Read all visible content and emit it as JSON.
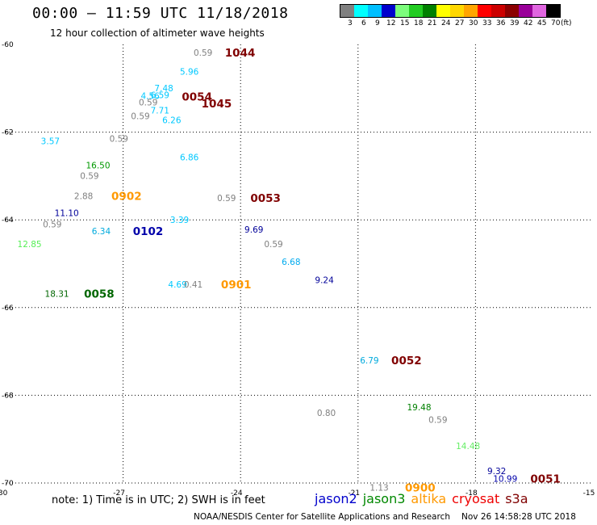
{
  "header": {
    "title": "00:00 – 11:59 UTC 11/18/2018",
    "subtitle": "12 hour collection of altimeter wave heights"
  },
  "colorbar": {
    "unit": "(ft)",
    "bins": [
      {
        "label": "3",
        "color": "#808080"
      },
      {
        "label": "6",
        "color": "#00ffff"
      },
      {
        "label": "9",
        "color": "#00bfff"
      },
      {
        "label": "12",
        "color": "#0000cd"
      },
      {
        "label": "15",
        "color": "#7cfc7c"
      },
      {
        "label": "18",
        "color": "#22cc22"
      },
      {
        "label": "21",
        "color": "#008000"
      },
      {
        "label": "24",
        "color": "#ffff00"
      },
      {
        "label": "27",
        "color": "#ffd700"
      },
      {
        "label": "30",
        "color": "#ffa500"
      },
      {
        "label": "33",
        "color": "#ff0000"
      },
      {
        "label": "36",
        "color": "#cc0000"
      },
      {
        "label": "39",
        "color": "#8b0000"
      },
      {
        "label": "42",
        "color": "#990099"
      },
      {
        "label": "45",
        "color": "#e066e0"
      },
      {
        "label": "70",
        "color": "#000000"
      }
    ]
  },
  "map": {
    "lon_range": [
      -30,
      -15
    ],
    "lat_range": [
      -70,
      -60
    ],
    "lat_ticks": [
      "-60",
      "-62",
      "-64",
      "-66",
      "-68",
      "-70"
    ],
    "lon_ticks": [
      "-30",
      "-27",
      "-24",
      "-21",
      "-18",
      "-15"
    ],
    "observations": [
      {
        "text": "0.59",
        "lon": -25.2,
        "lat": -60.18,
        "color": "#808080",
        "size": "s"
      },
      {
        "text": "1044",
        "lon": -24.4,
        "lat": -60.18,
        "color": "#800000",
        "size": "b"
      },
      {
        "text": "5.96",
        "lon": -25.55,
        "lat": -60.62,
        "color": "#00c8ff",
        "size": "s"
      },
      {
        "text": "7.48",
        "lon": -26.2,
        "lat": -60.99,
        "color": "#00c8ff",
        "size": "s"
      },
      {
        "text": "4.56",
        "lon": -26.55,
        "lat": -61.17,
        "color": "#00c8ff",
        "size": "s"
      },
      {
        "text": "6.59",
        "lon": -26.3,
        "lat": -61.15,
        "color": "#00c8ff",
        "size": "s"
      },
      {
        "text": "0054",
        "lon": -25.5,
        "lat": -61.19,
        "color": "#800000",
        "size": "b"
      },
      {
        "text": "0.59",
        "lon": -26.6,
        "lat": -61.32,
        "color": "#808080",
        "size": "s"
      },
      {
        "text": "1045",
        "lon": -25.0,
        "lat": -61.34,
        "color": "#800000",
        "size": "b"
      },
      {
        "text": "7.71",
        "lon": -26.3,
        "lat": -61.5,
        "color": "#00c8ff",
        "size": "s"
      },
      {
        "text": "0.59",
        "lon": -26.8,
        "lat": -61.63,
        "color": "#808080",
        "size": "s"
      },
      {
        "text": "6.26",
        "lon": -26.0,
        "lat": -61.72,
        "color": "#00c8ff",
        "size": "s"
      },
      {
        "text": "3.57",
        "lon": -29.1,
        "lat": -62.2,
        "color": "#00c8ff",
        "size": "s"
      },
      {
        "text": "0.59",
        "lon": -27.35,
        "lat": -62.15,
        "color": "#808080",
        "size": "s"
      },
      {
        "text": "6.86",
        "lon": -25.55,
        "lat": -62.57,
        "color": "#00c8ff",
        "size": "s"
      },
      {
        "text": "16.50",
        "lon": -27.95,
        "lat": -62.75,
        "color": "#009900",
        "size": "s"
      },
      {
        "text": "0.59",
        "lon": -28.1,
        "lat": -62.99,
        "color": "#808080",
        "size": "s"
      },
      {
        "text": "2.88",
        "lon": -28.25,
        "lat": -63.45,
        "color": "#808080",
        "size": "s"
      },
      {
        "text": "0902",
        "lon": -27.3,
        "lat": -63.45,
        "color": "#ff9900",
        "size": "b"
      },
      {
        "text": "0.59",
        "lon": -24.6,
        "lat": -63.5,
        "color": "#808080",
        "size": "s"
      },
      {
        "text": "0053",
        "lon": -23.75,
        "lat": -63.5,
        "color": "#800000",
        "size": "b"
      },
      {
        "text": "11.10",
        "lon": -28.75,
        "lat": -63.84,
        "color": "#000099",
        "size": "s"
      },
      {
        "text": "0.59",
        "lon": -29.05,
        "lat": -64.1,
        "color": "#808080",
        "size": "s"
      },
      {
        "text": "3.39",
        "lon": -25.8,
        "lat": -64.0,
        "color": "#00c8ff",
        "size": "s"
      },
      {
        "text": "9.69",
        "lon": -23.9,
        "lat": -64.22,
        "color": "#000099",
        "size": "s"
      },
      {
        "text": "6.34",
        "lon": -27.8,
        "lat": -64.25,
        "color": "#00aadd",
        "size": "s"
      },
      {
        "text": "0102",
        "lon": -26.75,
        "lat": -64.25,
        "color": "#0000aa",
        "size": "b"
      },
      {
        "text": "12.85",
        "lon": -29.7,
        "lat": -64.55,
        "color": "#55ee55",
        "size": "s"
      },
      {
        "text": "0.59",
        "lon": -23.4,
        "lat": -64.55,
        "color": "#808080",
        "size": "s"
      },
      {
        "text": "6.68",
        "lon": -22.95,
        "lat": -64.95,
        "color": "#00aaee",
        "size": "s"
      },
      {
        "text": "9.24",
        "lon": -22.1,
        "lat": -65.37,
        "color": "#000099",
        "size": "s"
      },
      {
        "text": "4.69",
        "lon": -25.85,
        "lat": -65.47,
        "color": "#00c8ff",
        "size": "s"
      },
      {
        "text": "0.41",
        "lon": -25.45,
        "lat": -65.47,
        "color": "#808080",
        "size": "s"
      },
      {
        "text": "0901",
        "lon": -24.5,
        "lat": -65.47,
        "color": "#ff9900",
        "size": "b"
      },
      {
        "text": "18.31",
        "lon": -29.0,
        "lat": -65.68,
        "color": "#006600",
        "size": "s"
      },
      {
        "text": "0058",
        "lon": -28.0,
        "lat": -65.68,
        "color": "#006600",
        "size": "b"
      },
      {
        "text": "6.79",
        "lon": -20.95,
        "lat": -67.2,
        "color": "#00aadd",
        "size": "s"
      },
      {
        "text": "0052",
        "lon": -20.15,
        "lat": -67.2,
        "color": "#800000",
        "size": "b"
      },
      {
        "text": "19.48",
        "lon": -19.75,
        "lat": -68.27,
        "color": "#008000",
        "size": "s"
      },
      {
        "text": "0.80",
        "lon": -22.05,
        "lat": -68.4,
        "color": "#808080",
        "size": "s"
      },
      {
        "text": "0.59",
        "lon": -19.2,
        "lat": -68.55,
        "color": "#808080",
        "size": "s"
      },
      {
        "text": "14.48",
        "lon": -18.5,
        "lat": -69.15,
        "color": "#66ee66",
        "size": "s"
      },
      {
        "text": "9.32",
        "lon": -17.7,
        "lat": -69.72,
        "color": "#000099",
        "size": "s"
      },
      {
        "text": "10.99",
        "lon": -17.55,
        "lat": -69.9,
        "color": "#0000aa",
        "size": "s"
      },
      {
        "text": "0051",
        "lon": -16.6,
        "lat": -69.9,
        "color": "#800000",
        "size": "b"
      },
      {
        "text": "1.13",
        "lon": -20.7,
        "lat": -70.1,
        "color": "#808080",
        "size": "s"
      },
      {
        "text": "0900",
        "lon": -19.8,
        "lat": -70.1,
        "color": "#ff9900",
        "size": "b"
      }
    ]
  },
  "note": "note: 1) Time is in UTC; 2) SWH is in feet",
  "satellites": [
    {
      "name": "jason2",
      "color": "#0000cc"
    },
    {
      "name": "jason3",
      "color": "#008800"
    },
    {
      "name": "altika",
      "color": "#ff9900"
    },
    {
      "name": "cryosat",
      "color": "#ee0000"
    },
    {
      "name": "s3a",
      "color": "#800000"
    }
  ],
  "footer": {
    "credit": "NOAA/NESDIS Center for Satellite Applications and Research",
    "timestamp": "Nov 26 14:58:28 UTC 2018"
  }
}
